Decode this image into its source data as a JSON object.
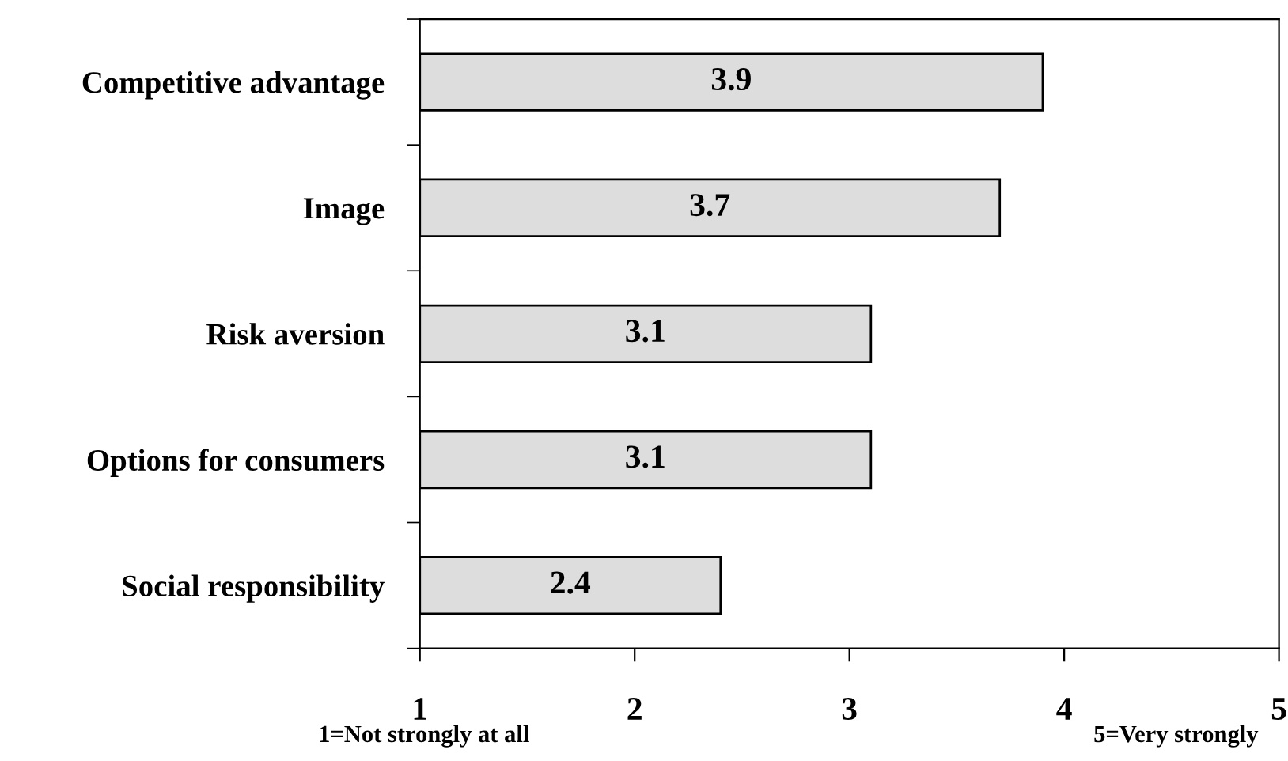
{
  "chart_data": {
    "type": "bar",
    "orientation": "horizontal",
    "categories": [
      "Competitive advantage",
      "Image",
      "Risk aversion",
      "Options for consumers",
      "Social responsibility"
    ],
    "values": [
      3.9,
      3.7,
      3.1,
      3.1,
      2.4
    ],
    "color": "#dddddd",
    "xlim": [
      1,
      5
    ],
    "xticks": [
      1,
      2,
      3,
      4,
      5
    ],
    "data_labels": true,
    "grid": false,
    "legend": false,
    "annotations": [
      "1=Not strongly at all",
      "5=Very strongly"
    ]
  }
}
